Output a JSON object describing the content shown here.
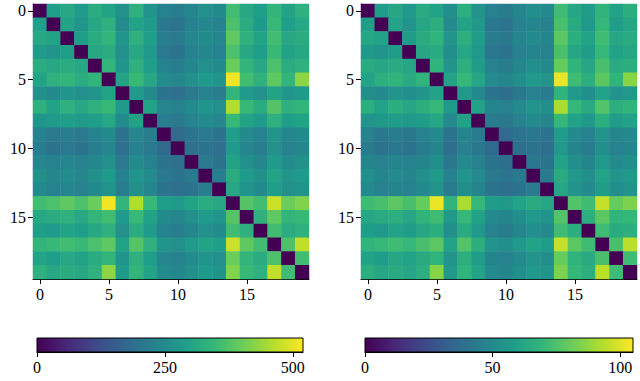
{
  "chart_data": [
    {
      "type": "heatmap",
      "x": [
        0,
        1,
        2,
        3,
        4,
        5,
        6,
        7,
        8,
        9,
        10,
        11,
        12,
        13,
        14,
        15,
        16,
        17,
        18,
        19
      ],
      "y": [
        0,
        1,
        2,
        3,
        4,
        5,
        6,
        7,
        8,
        9,
        10,
        11,
        12,
        13,
        14,
        15,
        16,
        17,
        18,
        19
      ],
      "xticks": [
        0,
        5,
        10,
        15
      ],
      "yticks": [
        0,
        5,
        10,
        15
      ],
      "color_range": [
        0,
        520
      ],
      "color_ticks": [
        0,
        250,
        500
      ],
      "values": [
        [
          0,
          290,
          310,
          280,
          320,
          300,
          260,
          330,
          270,
          230,
          220,
          240,
          260,
          250,
          360,
          310,
          290,
          340,
          300,
          330
        ],
        [
          290,
          0,
          300,
          270,
          310,
          330,
          250,
          300,
          280,
          210,
          200,
          230,
          240,
          230,
          370,
          320,
          280,
          350,
          290,
          310
        ],
        [
          310,
          300,
          0,
          290,
          320,
          340,
          270,
          330,
          290,
          220,
          210,
          240,
          250,
          240,
          390,
          330,
          300,
          360,
          310,
          320
        ],
        [
          280,
          270,
          290,
          0,
          310,
          320,
          260,
          310,
          280,
          210,
          200,
          230,
          240,
          230,
          370,
          310,
          290,
          350,
          300,
          310
        ],
        [
          320,
          310,
          320,
          310,
          0,
          340,
          270,
          330,
          290,
          230,
          220,
          240,
          260,
          250,
          400,
          340,
          310,
          370,
          320,
          330
        ],
        [
          300,
          330,
          340,
          320,
          340,
          0,
          300,
          350,
          310,
          250,
          240,
          260,
          280,
          270,
          510,
          360,
          330,
          390,
          340,
          430
        ],
        [
          260,
          250,
          270,
          260,
          270,
          300,
          0,
          280,
          250,
          200,
          190,
          210,
          230,
          220,
          340,
          280,
          260,
          300,
          270,
          280
        ],
        [
          330,
          300,
          330,
          310,
          330,
          350,
          280,
          0,
          300,
          240,
          230,
          250,
          270,
          260,
          460,
          350,
          320,
          380,
          330,
          340
        ],
        [
          270,
          280,
          290,
          280,
          290,
          310,
          250,
          300,
          0,
          220,
          210,
          230,
          250,
          240,
          350,
          300,
          280,
          330,
          290,
          300
        ],
        [
          230,
          210,
          220,
          210,
          230,
          250,
          200,
          240,
          220,
          0,
          180,
          200,
          210,
          200,
          290,
          250,
          230,
          270,
          240,
          250
        ],
        [
          220,
          200,
          210,
          200,
          220,
          240,
          190,
          230,
          210,
          180,
          0,
          190,
          200,
          190,
          280,
          240,
          220,
          260,
          230,
          240
        ],
        [
          240,
          230,
          240,
          230,
          240,
          260,
          210,
          250,
          230,
          200,
          190,
          0,
          210,
          200,
          300,
          260,
          240,
          280,
          250,
          260
        ],
        [
          260,
          240,
          250,
          240,
          260,
          280,
          230,
          270,
          250,
          210,
          200,
          210,
          0,
          220,
          320,
          280,
          260,
          300,
          270,
          280
        ],
        [
          250,
          230,
          240,
          230,
          250,
          270,
          220,
          260,
          240,
          200,
          190,
          200,
          220,
          0,
          310,
          270,
          250,
          290,
          260,
          270
        ],
        [
          360,
          370,
          390,
          370,
          400,
          510,
          340,
          460,
          350,
          290,
          280,
          300,
          320,
          310,
          0,
          380,
          360,
          480,
          400,
          420
        ],
        [
          310,
          320,
          330,
          310,
          340,
          360,
          280,
          350,
          300,
          250,
          240,
          260,
          280,
          270,
          380,
          0,
          330,
          390,
          340,
          350
        ],
        [
          290,
          280,
          300,
          290,
          310,
          330,
          260,
          320,
          280,
          230,
          220,
          240,
          260,
          250,
          360,
          330,
          0,
          360,
          320,
          330
        ],
        [
          340,
          350,
          360,
          350,
          370,
          390,
          300,
          380,
          330,
          270,
          260,
          280,
          300,
          290,
          480,
          390,
          360,
          0,
          370,
          470
        ],
        [
          300,
          290,
          310,
          300,
          320,
          340,
          270,
          330,
          290,
          240,
          230,
          250,
          270,
          260,
          400,
          340,
          320,
          370,
          0,
          360
        ],
        [
          330,
          310,
          320,
          310,
          330,
          430,
          280,
          340,
          300,
          250,
          240,
          260,
          280,
          270,
          420,
          350,
          330,
          470,
          360,
          0
        ]
      ]
    },
    {
      "type": "heatmap",
      "x": [
        0,
        1,
        2,
        3,
        4,
        5,
        6,
        7,
        8,
        9,
        10,
        11,
        12,
        13,
        14,
        15,
        16,
        17,
        18,
        19
      ],
      "y": [
        0,
        1,
        2,
        3,
        4,
        5,
        6,
        7,
        8,
        9,
        10,
        11,
        12,
        13,
        14,
        15,
        16,
        17,
        18,
        19
      ],
      "xticks": [
        0,
        5,
        10,
        15
      ],
      "yticks": [
        0,
        5,
        10,
        15
      ],
      "color_range": [
        0,
        105
      ],
      "color_ticks": [
        0,
        50,
        100
      ],
      "values": [
        [
          0,
          58,
          62,
          56,
          64,
          60,
          52,
          66,
          54,
          46,
          44,
          48,
          52,
          50,
          72,
          62,
          58,
          68,
          60,
          66
        ],
        [
          58,
          0,
          60,
          54,
          62,
          66,
          50,
          60,
          56,
          42,
          40,
          46,
          48,
          46,
          74,
          64,
          56,
          70,
          58,
          62
        ],
        [
          62,
          60,
          0,
          58,
          64,
          68,
          54,
          66,
          58,
          44,
          42,
          48,
          50,
          48,
          78,
          66,
          60,
          72,
          62,
          64
        ],
        [
          56,
          54,
          58,
          0,
          62,
          64,
          52,
          62,
          56,
          42,
          40,
          46,
          48,
          46,
          74,
          62,
          58,
          70,
          60,
          62
        ],
        [
          64,
          62,
          64,
          62,
          0,
          68,
          54,
          66,
          58,
          46,
          44,
          48,
          52,
          50,
          80,
          68,
          62,
          74,
          64,
          66
        ],
        [
          60,
          66,
          68,
          64,
          68,
          0,
          60,
          70,
          62,
          50,
          48,
          52,
          56,
          54,
          102,
          72,
          66,
          78,
          68,
          86
        ],
        [
          52,
          50,
          54,
          52,
          54,
          60,
          0,
          56,
          50,
          40,
          38,
          42,
          46,
          44,
          68,
          56,
          52,
          60,
          54,
          56
        ],
        [
          66,
          60,
          66,
          62,
          66,
          70,
          56,
          0,
          60,
          48,
          46,
          50,
          54,
          52,
          92,
          70,
          64,
          76,
          66,
          68
        ],
        [
          54,
          56,
          58,
          56,
          58,
          62,
          50,
          60,
          0,
          44,
          42,
          46,
          50,
          48,
          70,
          60,
          56,
          66,
          58,
          60
        ],
        [
          46,
          42,
          44,
          42,
          46,
          50,
          40,
          48,
          44,
          0,
          36,
          40,
          42,
          40,
          58,
          50,
          46,
          54,
          48,
          50
        ],
        [
          44,
          40,
          42,
          40,
          44,
          48,
          38,
          46,
          42,
          36,
          0,
          38,
          40,
          38,
          56,
          48,
          44,
          52,
          46,
          48
        ],
        [
          48,
          46,
          48,
          46,
          48,
          52,
          42,
          50,
          46,
          40,
          38,
          0,
          42,
          40,
          60,
          52,
          48,
          56,
          50,
          52
        ],
        [
          52,
          48,
          50,
          48,
          52,
          56,
          46,
          54,
          50,
          42,
          40,
          42,
          0,
          44,
          64,
          56,
          52,
          60,
          54,
          56
        ],
        [
          50,
          46,
          48,
          46,
          50,
          54,
          44,
          52,
          48,
          40,
          38,
          40,
          44,
          0,
          62,
          54,
          50,
          58,
          52,
          54
        ],
        [
          72,
          74,
          78,
          74,
          80,
          102,
          68,
          92,
          70,
          58,
          56,
          60,
          64,
          62,
          0,
          76,
          72,
          96,
          80,
          84
        ],
        [
          62,
          64,
          66,
          62,
          68,
          72,
          56,
          70,
          60,
          50,
          48,
          52,
          56,
          54,
          76,
          0,
          66,
          78,
          68,
          70
        ],
        [
          58,
          56,
          60,
          58,
          62,
          66,
          52,
          64,
          56,
          46,
          44,
          48,
          52,
          50,
          72,
          66,
          0,
          72,
          64,
          66
        ],
        [
          68,
          70,
          72,
          70,
          74,
          78,
          60,
          76,
          66,
          54,
          52,
          56,
          60,
          58,
          96,
          78,
          72,
          0,
          74,
          94
        ],
        [
          60,
          58,
          62,
          60,
          64,
          68,
          54,
          66,
          58,
          48,
          46,
          50,
          54,
          52,
          80,
          68,
          64,
          74,
          0,
          72
        ],
        [
          66,
          62,
          64,
          62,
          66,
          86,
          56,
          68,
          60,
          50,
          48,
          52,
          56,
          54,
          84,
          70,
          66,
          94,
          72,
          0
        ]
      ]
    }
  ]
}
